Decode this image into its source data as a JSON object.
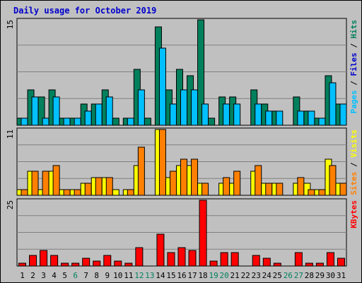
{
  "colors": {
    "background": "#c0c0c0",
    "title": "#0000cc",
    "hits": "#00805c",
    "files": "#00c0ff",
    "pages": "#00c0ff",
    "visits": "#ffff00",
    "sites": "#ff8000",
    "kbytes": "#ff0000",
    "weekday_label": "#000000",
    "weekend_label": "#00805c"
  },
  "chart_data": {
    "type": "bar",
    "title": "Daily usage for October 2019",
    "categories": [
      "1",
      "2",
      "3",
      "4",
      "5",
      "6",
      "7",
      "8",
      "9",
      "10",
      "11",
      "12",
      "13",
      "14",
      "15",
      "16",
      "17",
      "18",
      "19",
      "20",
      "21",
      "22",
      "23",
      "24",
      "25",
      "26",
      "27",
      "28",
      "29",
      "30",
      "31"
    ],
    "weekend_days": [
      "6",
      "12",
      "13",
      "19",
      "20",
      "26",
      "27"
    ],
    "panels": [
      {
        "id": "pages-files-hits",
        "ymax_label": "15",
        "ylim": [
          0,
          15
        ],
        "legend": [
          {
            "text": "Pages",
            "color": "#00c0ff"
          },
          {
            "text": "Files",
            "color": "#0000cc"
          },
          {
            "text": "Hits",
            "color": "#00805c"
          }
        ],
        "series": [
          {
            "name": "Hits",
            "color": "#00805c",
            "values": [
              1,
              5,
              4,
              5,
              1,
              1,
              3,
              3,
              5,
              1,
              1,
              8,
              1,
              14,
              5,
              8,
              7,
              15,
              1,
              4,
              4,
              0,
              5,
              3,
              2,
              0,
              4,
              2,
              1,
              7,
              3
            ]
          },
          {
            "name": "Files",
            "color": "#00c0ff",
            "values": [
              1,
              4,
              1,
              4,
              1,
              1,
              2,
              3,
              4,
              0,
              1,
              5,
              0,
              11,
              3,
              5,
              5,
              3,
              0,
              3,
              3,
              0,
              3,
              2,
              2,
              0,
              2,
              2,
              1,
              6,
              3
            ]
          }
        ]
      },
      {
        "id": "sites-visits",
        "ymax_label": "11",
        "ylim": [
          0,
          11
        ],
        "legend": [
          {
            "text": "Sites",
            "color": "#ff8000"
          },
          {
            "text": "Visits",
            "color": "#ffff00"
          }
        ],
        "series": [
          {
            "name": "Visits",
            "color": "#ffff00",
            "values": [
              1,
              4,
              1,
              4,
              1,
              1,
              2,
              3,
              3,
              1,
              1,
              5,
              0,
              11,
              3,
              5,
              5,
              2,
              0,
              2,
              2,
              0,
              4,
              2,
              2,
              0,
              2,
              2,
              1,
              6,
              2
            ]
          },
          {
            "name": "Sites",
            "color": "#ff8000",
            "values": [
              1,
              4,
              4,
              5,
              1,
              1,
              2,
              3,
              3,
              0,
              1,
              8,
              0,
              11,
              4,
              6,
              6,
              2,
              0,
              3,
              4,
              0,
              5,
              2,
              2,
              0,
              3,
              1,
              1,
              5,
              2
            ]
          }
        ]
      },
      {
        "id": "kbytes",
        "ymax_label": "25",
        "ylim": [
          0,
          25
        ],
        "legend": [
          {
            "text": "KBytes",
            "color": "#ff0000"
          }
        ],
        "series": [
          {
            "name": "KBytes",
            "color": "#ff0000",
            "values": [
              1,
              4,
              6,
              4,
              1,
              1,
              3,
              2,
              4,
              2,
              1,
              7,
              0,
              12,
              5,
              7,
              6,
              25,
              2,
              5,
              5,
              0,
              4,
              3,
              1,
              0,
              5,
              1,
              1,
              5,
              3
            ]
          }
        ]
      }
    ]
  }
}
